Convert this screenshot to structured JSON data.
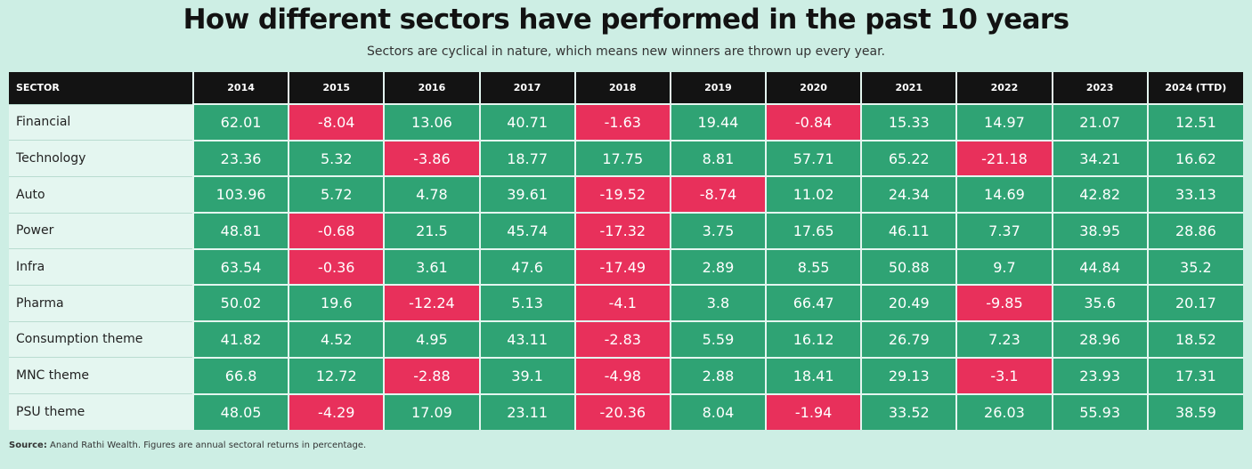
{
  "title": "How different sectors have performed in the past 10 years",
  "subtitle": "Sectors are cyclical in nature, which means new winners are thrown up every year.",
  "source_label": "Source:",
  "source_text": "Anand Rathi Wealth. Figures are annual sectoral returns in percentage.",
  "colors": {
    "positive": "#2fa374",
    "negative": "#e8305b",
    "header": "#131313",
    "background": "#cdeee4"
  },
  "chart_data": {
    "type": "table",
    "title": "How different sectors have performed in the past 10 years",
    "subtitle": "Sectors are cyclical in nature, which means new winners are thrown up every year.",
    "columns": [
      "SECTOR",
      "2014",
      "2015",
      "2016",
      "2017",
      "2018",
      "2019",
      "2020",
      "2021",
      "2022",
      "2023",
      "2024 (TTD)"
    ],
    "rows": [
      {
        "sector": "Financial",
        "values": [
          "62.01",
          "-8.04",
          "13.06",
          "40.71",
          "-1.63",
          "19.44",
          "-0.84",
          "15.33",
          "14.97",
          "21.07",
          "12.51"
        ]
      },
      {
        "sector": "Technology",
        "values": [
          "23.36",
          "5.32",
          "-3.86",
          "18.77",
          "17.75",
          "8.81",
          "57.71",
          "65.22",
          "-21.18",
          "34.21",
          "16.62"
        ]
      },
      {
        "sector": "Auto",
        "values": [
          "103.96",
          "5.72",
          "4.78",
          "39.61",
          "-19.52",
          "-8.74",
          "11.02",
          "24.34",
          "14.69",
          "42.82",
          "33.13"
        ]
      },
      {
        "sector": "Power",
        "values": [
          "48.81",
          "-0.68",
          "21.5",
          "45.74",
          "-17.32",
          "3.75",
          "17.65",
          "46.11",
          "7.37",
          "38.95",
          "28.86"
        ]
      },
      {
        "sector": "Infra",
        "values": [
          "63.54",
          "-0.36",
          "3.61",
          "47.6",
          "-17.49",
          "2.89",
          "8.55",
          "50.88",
          "9.7",
          "44.84",
          "35.2"
        ]
      },
      {
        "sector": "Pharma",
        "values": [
          "50.02",
          "19.6",
          "-12.24",
          "5.13",
          "-4.1",
          "3.8",
          "66.47",
          "20.49",
          "-9.85",
          "35.6",
          "20.17"
        ]
      },
      {
        "sector": "Consumption theme",
        "values": [
          "41.82",
          "4.52",
          "4.95",
          "43.11",
          "-2.83",
          "5.59",
          "16.12",
          "26.79",
          "7.23",
          "28.96",
          "18.52"
        ]
      },
      {
        "sector": "MNC theme",
        "values": [
          "66.8",
          "12.72",
          "-2.88",
          "39.1",
          "-4.98",
          "2.88",
          "18.41",
          "29.13",
          "-3.1",
          "23.93",
          "17.31"
        ]
      },
      {
        "sector": "PSU theme",
        "values": [
          "48.05",
          "-4.29",
          "17.09",
          "23.11",
          "-20.36",
          "8.04",
          "-1.94",
          "33.52",
          "26.03",
          "55.93",
          "38.59"
        ]
      }
    ]
  }
}
